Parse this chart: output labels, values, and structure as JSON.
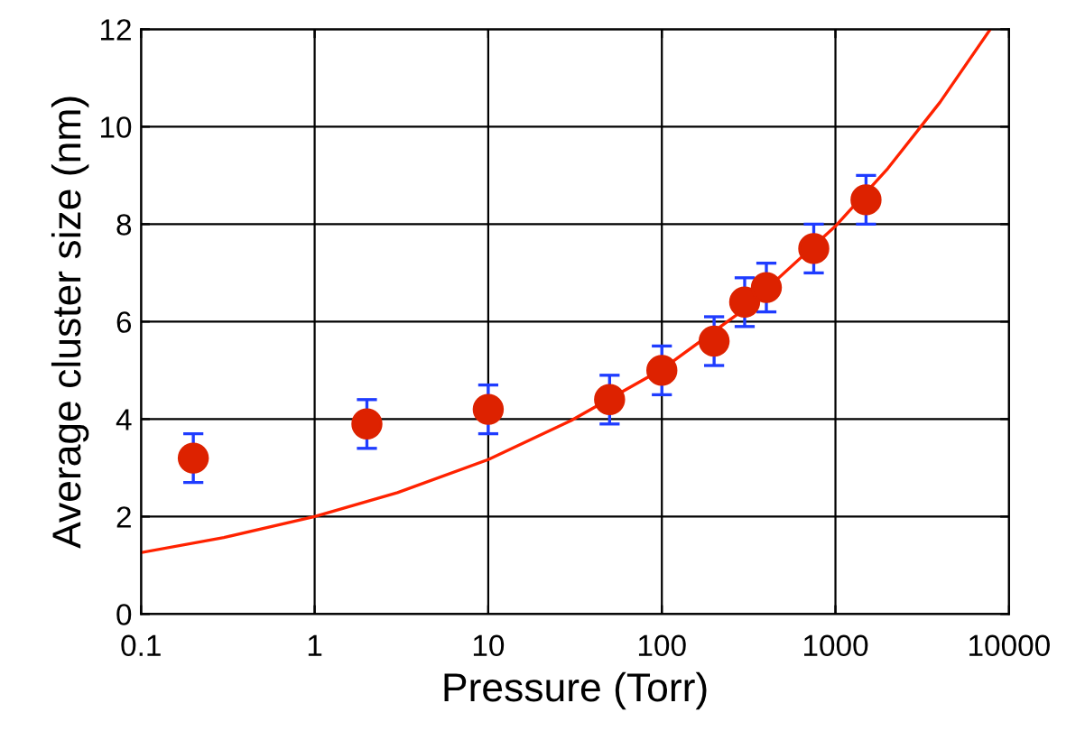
{
  "chart_data": {
    "type": "scatter",
    "xlabel": "Pressure (Torr)",
    "ylabel": "Average cluster size (nm)",
    "log": "x",
    "xlim": [
      0.1,
      10000
    ],
    "xticks": [
      0.1,
      1,
      10,
      100,
      1000,
      10000
    ],
    "ylim": [
      0,
      12
    ],
    "yticks": [
      0,
      2,
      4,
      6,
      8,
      10,
      12
    ],
    "grid": true,
    "series": [
      {
        "color": "#dd2200",
        "marker": "circle",
        "x": [
          0.2,
          2,
          10,
          50,
          100,
          200,
          300,
          400,
          750,
          1500
        ],
        "values": [
          3.2,
          3.9,
          4.2,
          4.4,
          5.0,
          5.6,
          6.4,
          6.7,
          7.5,
          8.5
        ],
        "errors": [
          0.5,
          0.5,
          0.5,
          0.5,
          0.5,
          0.5,
          0.5,
          0.5,
          0.5,
          0.5
        ]
      },
      {
        "type": "line",
        "color": "#ff2200",
        "marker": "none",
        "line_style": "solid",
        "x": [
          0.1,
          0.3,
          1,
          3,
          10,
          30,
          100,
          300,
          1000,
          2000,
          4000,
          7800
        ],
        "values": [
          1.26,
          1.57,
          2.0,
          2.49,
          3.17,
          3.97,
          5.02,
          6.26,
          7.96,
          9.14,
          10.5,
          12.0
        ]
      }
    ]
  }
}
